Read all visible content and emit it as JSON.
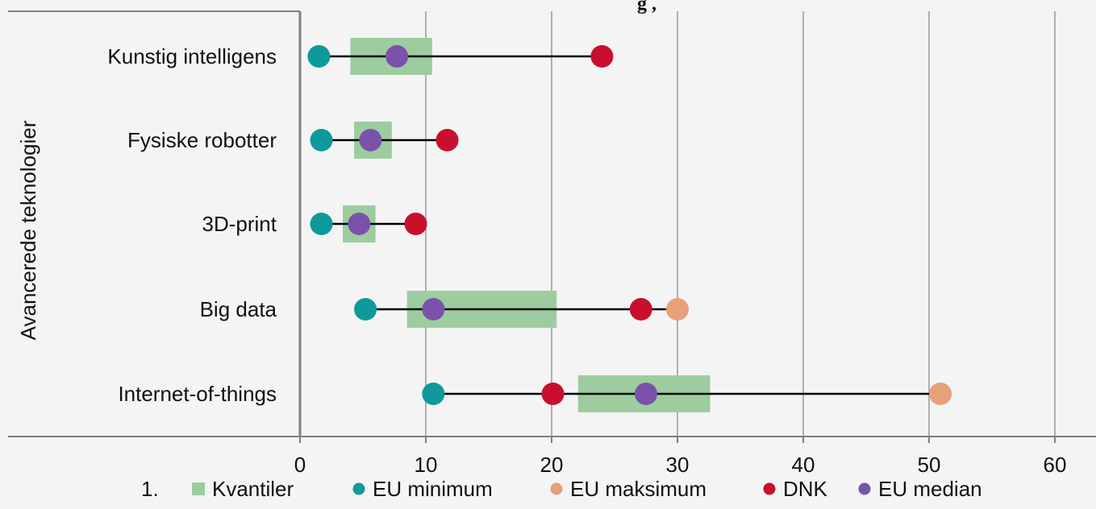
{
  "top_fragment": "g ,",
  "chart_data": {
    "type": "dot-range",
    "ylabel": "Avancerede teknologier",
    "categories": [
      "Kunstig intelligens",
      "Fysiske robotter",
      "3D-print",
      "Big data",
      "Internet-of-things"
    ],
    "xlim": [
      0,
      60
    ],
    "xticks": [
      0,
      10,
      20,
      30,
      40,
      50,
      60
    ],
    "grid": "vertical",
    "quantiles": [
      [
        4.0,
        10.5
      ],
      [
        4.3,
        7.3
      ],
      [
        3.4,
        6.0
      ],
      [
        8.5,
        20.4
      ],
      [
        22.1,
        32.6
      ]
    ],
    "series": [
      {
        "name": "EU minimum",
        "color": "#0e9a9a",
        "values": [
          1.5,
          1.7,
          1.7,
          5.2,
          10.6
        ]
      },
      {
        "name": "EU maksimum",
        "color": "#e6a07a",
        "values": [
          null,
          null,
          null,
          30.0,
          50.9
        ]
      },
      {
        "name": "DNK",
        "color": "#c8102e",
        "values": [
          24.0,
          11.7,
          9.2,
          27.1,
          20.1
        ]
      },
      {
        "name": "EU median",
        "color": "#7b52ab",
        "values": [
          7.7,
          5.6,
          4.7,
          10.6,
          27.5
        ]
      }
    ],
    "legend": {
      "position": "bottom",
      "prefix": "1.",
      "items": [
        {
          "label": "Kvantiler",
          "color": "#9dcc9f",
          "shape": "square"
        },
        {
          "label": "EU minimum",
          "color": "#0e9a9a",
          "shape": "circle"
        },
        {
          "label": "EU maksimum",
          "color": "#e6a07a",
          "shape": "circle"
        },
        {
          "label": "DNK",
          "color": "#c8102e",
          "shape": "circle"
        },
        {
          "label": "EU median",
          "color": "#7b52ab",
          "shape": "circle"
        }
      ]
    }
  }
}
